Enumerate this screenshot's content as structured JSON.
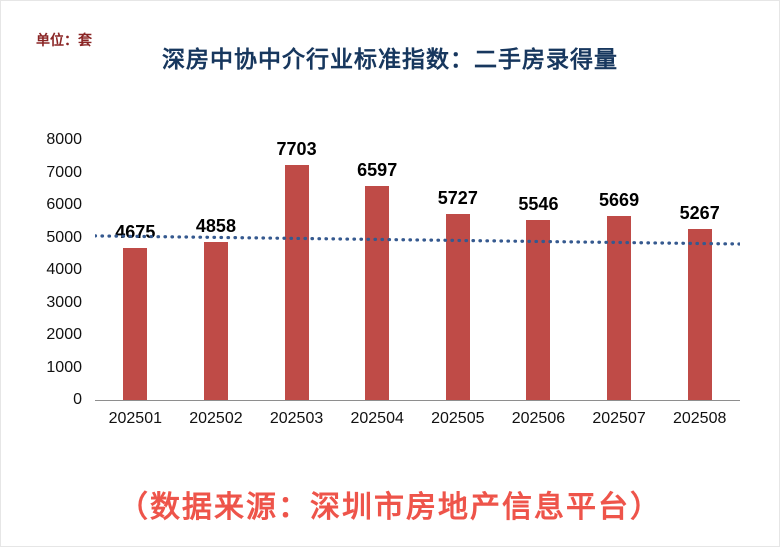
{
  "chart_data": {
    "type": "bar",
    "title": "深房中协中介行业标准指数：二手房录得量",
    "unit_label": "单位：套",
    "source": "（数据来源：深圳市房地产信息平台）",
    "categories": [
      "202501",
      "202502",
      "202503",
      "202504",
      "202505",
      "202506",
      "202507",
      "202508"
    ],
    "values": [
      4675,
      4858,
      7703,
      6597,
      5727,
      5546,
      5669,
      5267
    ],
    "ylim": [
      0,
      8000
    ],
    "ytick_step": 1000,
    "grid": "off",
    "legend": "none",
    "bar_color": "#bf4b47",
    "value_label_color": "#000000",
    "title_color": "#17375e",
    "source_color": "#ee544a",
    "trendline": {
      "style": "dotted",
      "color": "#35598f",
      "start_value": 5050,
      "end_value": 4800
    }
  }
}
